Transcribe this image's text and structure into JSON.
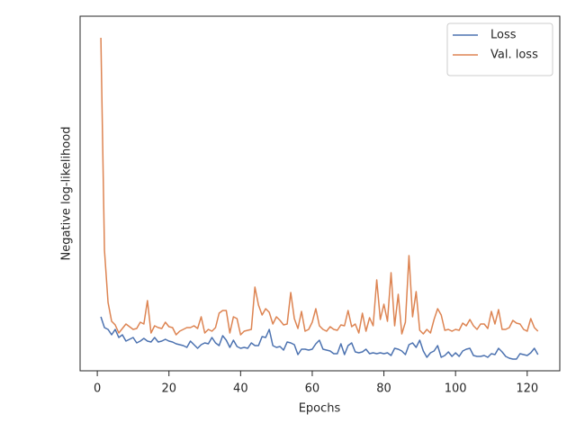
{
  "chart_data": {
    "type": "line",
    "xlabel": "Epochs",
    "ylabel": "Negative log-likelihood",
    "x": [
      1,
      2,
      3,
      4,
      5,
      6,
      7,
      8,
      9,
      10,
      11,
      12,
      13,
      14,
      15,
      16,
      17,
      18,
      19,
      20,
      21,
      22,
      23,
      24,
      25,
      26,
      27,
      28,
      29,
      30,
      31,
      32,
      33,
      34,
      35,
      36,
      37,
      38,
      39,
      40,
      41,
      42,
      43,
      44,
      45,
      46,
      47,
      48,
      49,
      50,
      51,
      52,
      53,
      54,
      55,
      56,
      57,
      58,
      59,
      60,
      61,
      62,
      63,
      64,
      65,
      66,
      67,
      68,
      69,
      70,
      71,
      72,
      73,
      74,
      75,
      76,
      77,
      78,
      79,
      80,
      81,
      82,
      83,
      84,
      85,
      86,
      87,
      88,
      89,
      90,
      91,
      92,
      93,
      94,
      95,
      96,
      97,
      98,
      99,
      100,
      101,
      102,
      103,
      104,
      105,
      106,
      107,
      108,
      109,
      110,
      111,
      112,
      113,
      114,
      115,
      116,
      117,
      118,
      119,
      120,
      121,
      122,
      123
    ],
    "series": [
      {
        "name": "Loss",
        "color": "#4c72b0",
        "values": [
          60,
          48,
          46,
          40,
          46,
          37,
          40,
          33,
          35,
          37,
          31,
          33,
          36,
          33,
          32,
          37,
          32,
          33,
          35,
          33,
          32,
          30,
          29,
          28,
          26,
          33,
          29,
          25,
          29,
          31,
          30,
          37,
          31,
          28,
          39,
          34,
          26,
          34,
          27,
          25,
          26,
          25,
          31,
          28,
          28,
          38,
          37,
          46,
          28,
          26,
          27,
          23,
          32,
          31,
          29,
          18,
          24,
          24,
          23,
          24,
          30,
          34,
          24,
          23,
          22,
          19,
          19,
          30,
          18,
          28,
          31,
          21,
          20,
          21,
          24,
          19,
          20,
          19,
          20,
          19,
          20,
          17,
          25,
          24,
          22,
          18,
          29,
          31,
          26,
          34,
          22,
          15,
          20,
          22,
          28,
          15,
          17,
          21,
          16,
          20,
          16,
          22,
          24,
          25,
          17,
          16,
          16,
          17,
          15,
          19,
          18,
          25,
          21,
          16,
          14,
          13,
          13,
          19,
          18,
          17,
          20,
          25,
          18
        ]
      },
      {
        "name": "Val. loss",
        "color": "#dd8452",
        "values": [
          370,
          134,
          76,
          55,
          51,
          42,
          47,
          52,
          49,
          46,
          47,
          54,
          52,
          78,
          42,
          50,
          48,
          47,
          54,
          49,
          48,
          40,
          44,
          46,
          48,
          48,
          50,
          47,
          60,
          42,
          46,
          44,
          48,
          64,
          67,
          67,
          42,
          60,
          58,
          40,
          44,
          45,
          46,
          93,
          73,
          62,
          69,
          65,
          52,
          60,
          56,
          51,
          52,
          87,
          58,
          47,
          66,
          44,
          46,
          54,
          69,
          50,
          46,
          44,
          49,
          46,
          45,
          51,
          50,
          67,
          49,
          52,
          42,
          64,
          44,
          59,
          50,
          101,
          57,
          74,
          55,
          109,
          50,
          85,
          41,
          54,
          128,
          60,
          88,
          45,
          41,
          46,
          42,
          57,
          69,
          62,
          45,
          46,
          44,
          46,
          45,
          53,
          50,
          57,
          50,
          46,
          52,
          52,
          47,
          66,
          52,
          68,
          46,
          46,
          48,
          56,
          53,
          52,
          46,
          44,
          58,
          48,
          44
        ]
      }
    ],
    "xlim": [
      -4.8,
      129.1
    ],
    "xticks": [
      0,
      20,
      40,
      60,
      80,
      100,
      120
    ],
    "ylim": [
      0,
      394
    ],
    "legend": "upper right"
  }
}
